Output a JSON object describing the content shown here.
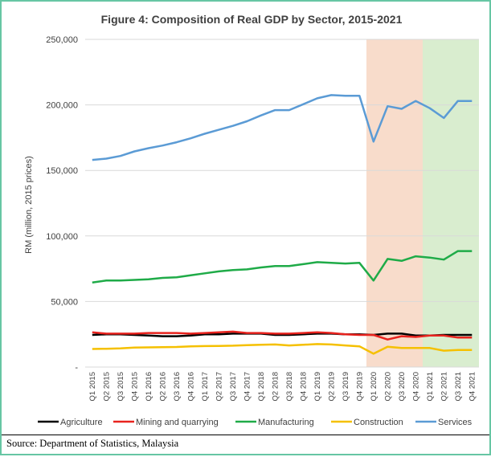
{
  "source": "Source: Department of Statistics, Malaysia",
  "chart_data": {
    "type": "line",
    "title": "Figure 4: Composition of Real GDP by Sector, 2015-2021",
    "ylabel": "RM (million, 2015 prices)",
    "xlabel": "",
    "ylim": [
      0,
      250000
    ],
    "yticks": [
      0,
      50000,
      100000,
      150000,
      200000,
      250000
    ],
    "ytick_labels": [
      "-",
      "50,000",
      "100,000",
      "150,000",
      "200,000",
      "250,000"
    ],
    "grid": true,
    "legend_position": "bottom",
    "categories": [
      "Q1 2015",
      "Q2 2015",
      "Q3 2015",
      "Q4 2015",
      "Q1 2016",
      "Q2 2016",
      "Q3 2016",
      "Q4 2016",
      "Q1 2017",
      "Q2 2017",
      "Q3 2017",
      "Q4 2017",
      "Q1 2018",
      "Q2 2018",
      "Q3 2018",
      "Q4 2018",
      "Q1 2019",
      "Q2 2019",
      "Q3 2019",
      "Q4 2019",
      "Q1 2020",
      "Q2 2020",
      "Q3 2020",
      "Q4 2020",
      "Q1 2021",
      "Q2 2021",
      "Q3 2021",
      "Q4 2021"
    ],
    "highlight_bands": [
      {
        "from": "Q1 2020",
        "to": "Q4 2020",
        "color": "#f8dccb"
      },
      {
        "from": "Q1 2021",
        "to": "Q4 2021",
        "color": "#d9edcf"
      }
    ],
    "series": [
      {
        "name": "Agriculture",
        "color": "#000000",
        "values": [
          24500,
          25000,
          25000,
          24500,
          24000,
          23500,
          23500,
          24000,
          25000,
          25000,
          25500,
          25500,
          25500,
          24500,
          24500,
          25000,
          25500,
          25500,
          25000,
          25000,
          24500,
          25500,
          25500,
          24000,
          24000,
          24500,
          24500,
          24500
        ]
      },
      {
        "name": "Mining and quarrying",
        "color": "#e8231e",
        "values": [
          26500,
          25500,
          25500,
          25500,
          26000,
          26000,
          26000,
          25500,
          26000,
          26500,
          27000,
          26000,
          26000,
          25500,
          25500,
          26000,
          26500,
          26000,
          25000,
          24500,
          24500,
          21000,
          23500,
          23000,
          24000,
          24000,
          22500,
          22500
        ]
      },
      {
        "name": "Manufacturing",
        "color": "#1fab48",
        "values": [
          64500,
          66000,
          66000,
          66500,
          67000,
          68000,
          68500,
          70000,
          71500,
          73000,
          74000,
          74500,
          76000,
          77000,
          77000,
          78500,
          80000,
          79500,
          79000,
          79500,
          66000,
          82500,
          81000,
          84500,
          83500,
          82000,
          88500,
          88500
        ]
      },
      {
        "name": "Construction",
        "color": "#f5c000",
        "values": [
          13800,
          14000,
          14300,
          14800,
          15000,
          15200,
          15300,
          15800,
          16000,
          16100,
          16300,
          16700,
          17000,
          17200,
          16500,
          17000,
          17500,
          17200,
          16500,
          15800,
          10200,
          15500,
          14500,
          14500,
          14500,
          12500,
          13000,
          13000
        ]
      },
      {
        "name": "Services",
        "color": "#5b9bd5",
        "values": [
          158000,
          159000,
          161000,
          164500,
          167000,
          169000,
          171500,
          174500,
          178000,
          181000,
          184000,
          187500,
          192000,
          196000,
          196000,
          200500,
          205000,
          207500,
          207000,
          207000,
          172000,
          199000,
          197000,
          203000,
          197500,
          190000,
          203000,
          203000
        ]
      }
    ]
  }
}
